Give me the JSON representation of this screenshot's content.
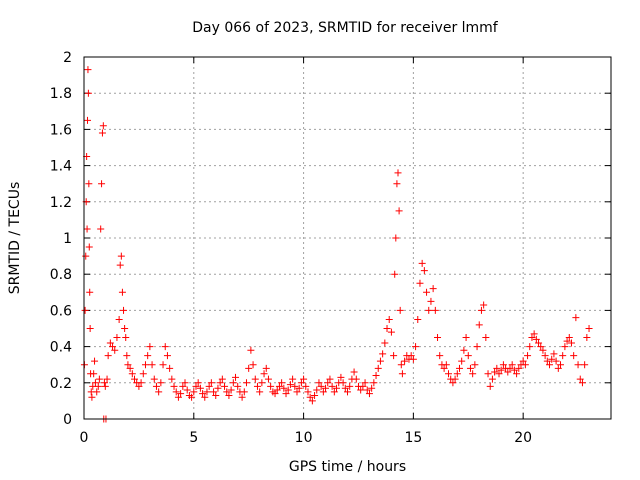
{
  "chart_data": {
    "type": "scatter",
    "title": "Day 066 of 2023, SRMTID for receiver lmmf",
    "xlabel": "GPS time / hours",
    "ylabel": "SRMTID / TECUs",
    "xlim": [
      0,
      24
    ],
    "ylim": [
      0,
      2
    ],
    "xticks": [
      0,
      5,
      10,
      15,
      20
    ],
    "xtick_labels": [
      "0",
      "5",
      "10",
      "15",
      "20"
    ],
    "yticks": [
      0,
      0.2,
      0.4,
      0.6,
      0.8,
      1,
      1.2,
      1.4,
      1.6,
      1.8,
      2
    ],
    "ytick_labels": [
      "0",
      "0.2",
      "0.4",
      "0.6",
      "0.8",
      "1",
      "1.2",
      "1.4",
      "1.6",
      "1.8",
      "2"
    ],
    "grid": true,
    "marker": "+",
    "color": "#ff0000",
    "series": [
      {
        "name": "SRMTID",
        "points": [
          [
            0.02,
            0.3
          ],
          [
            0.05,
            0.6
          ],
          [
            0.08,
            0.9
          ],
          [
            0.1,
            1.2
          ],
          [
            0.12,
            1.45
          ],
          [
            0.14,
            1.05
          ],
          [
            0.16,
            1.65
          ],
          [
            0.18,
            1.93
          ],
          [
            0.2,
            1.8
          ],
          [
            0.22,
            1.3
          ],
          [
            0.24,
            0.95
          ],
          [
            0.26,
            0.7
          ],
          [
            0.28,
            0.5
          ],
          [
            0.3,
            0.25
          ],
          [
            0.33,
            0.15
          ],
          [
            0.36,
            0.12
          ],
          [
            0.4,
            0.18
          ],
          [
            0.44,
            0.25
          ],
          [
            0.48,
            0.32
          ],
          [
            0.52,
            0.2
          ],
          [
            0.58,
            0.15
          ],
          [
            0.65,
            0.18
          ],
          [
            0.7,
            0.22
          ],
          [
            0.76,
            1.05
          ],
          [
            0.8,
            1.3
          ],
          [
            0.84,
            1.58
          ],
          [
            0.88,
            1.62
          ],
          [
            0.9,
            0.0
          ],
          [
            0.93,
            0.2
          ],
          [
            0.97,
            0.18
          ],
          [
            1.0,
            0.0
          ],
          [
            1.05,
            0.22
          ],
          [
            1.1,
            0.35
          ],
          [
            1.2,
            0.42
          ],
          [
            1.3,
            0.4
          ],
          [
            1.4,
            0.38
          ],
          [
            1.5,
            0.45
          ],
          [
            1.6,
            0.55
          ],
          [
            1.65,
            0.85
          ],
          [
            1.7,
            0.9
          ],
          [
            1.75,
            0.7
          ],
          [
            1.8,
            0.6
          ],
          [
            1.85,
            0.5
          ],
          [
            1.9,
            0.45
          ],
          [
            1.95,
            0.35
          ],
          [
            2.0,
            0.3
          ],
          [
            2.1,
            0.28
          ],
          [
            2.2,
            0.25
          ],
          [
            2.3,
            0.22
          ],
          [
            2.4,
            0.2
          ],
          [
            2.5,
            0.18
          ],
          [
            2.6,
            0.2
          ],
          [
            2.7,
            0.25
          ],
          [
            2.8,
            0.3
          ],
          [
            2.9,
            0.35
          ],
          [
            3.0,
            0.4
          ],
          [
            3.1,
            0.3
          ],
          [
            3.2,
            0.22
          ],
          [
            3.3,
            0.18
          ],
          [
            3.4,
            0.15
          ],
          [
            3.5,
            0.2
          ],
          [
            3.6,
            0.3
          ],
          [
            3.7,
            0.4
          ],
          [
            3.8,
            0.35
          ],
          [
            3.9,
            0.28
          ],
          [
            4.0,
            0.22
          ],
          [
            4.1,
            0.18
          ],
          [
            4.2,
            0.15
          ],
          [
            4.3,
            0.12
          ],
          [
            4.4,
            0.14
          ],
          [
            4.5,
            0.18
          ],
          [
            4.6,
            0.2
          ],
          [
            4.7,
            0.16
          ],
          [
            4.8,
            0.13
          ],
          [
            4.9,
            0.12
          ],
          [
            5.0,
            0.15
          ],
          [
            5.1,
            0.18
          ],
          [
            5.2,
            0.2
          ],
          [
            5.3,
            0.17
          ],
          [
            5.4,
            0.14
          ],
          [
            5.5,
            0.12
          ],
          [
            5.6,
            0.15
          ],
          [
            5.7,
            0.18
          ],
          [
            5.8,
            0.2
          ],
          [
            5.9,
            0.15
          ],
          [
            6.0,
            0.13
          ],
          [
            6.1,
            0.17
          ],
          [
            6.2,
            0.2
          ],
          [
            6.3,
            0.22
          ],
          [
            6.4,
            0.18
          ],
          [
            6.5,
            0.15
          ],
          [
            6.6,
            0.13
          ],
          [
            6.7,
            0.16
          ],
          [
            6.8,
            0.2
          ],
          [
            6.9,
            0.23
          ],
          [
            7.0,
            0.18
          ],
          [
            7.1,
            0.15
          ],
          [
            7.2,
            0.12
          ],
          [
            7.3,
            0.15
          ],
          [
            7.4,
            0.2
          ],
          [
            7.5,
            0.28
          ],
          [
            7.6,
            0.38
          ],
          [
            7.7,
            0.3
          ],
          [
            7.8,
            0.22
          ],
          [
            7.9,
            0.18
          ],
          [
            8.0,
            0.15
          ],
          [
            8.1,
            0.2
          ],
          [
            8.2,
            0.25
          ],
          [
            8.3,
            0.28
          ],
          [
            8.4,
            0.22
          ],
          [
            8.5,
            0.18
          ],
          [
            8.6,
            0.15
          ],
          [
            8.7,
            0.14
          ],
          [
            8.8,
            0.16
          ],
          [
            8.9,
            0.18
          ],
          [
            9.0,
            0.2
          ],
          [
            9.1,
            0.17
          ],
          [
            9.2,
            0.14
          ],
          [
            9.3,
            0.16
          ],
          [
            9.4,
            0.19
          ],
          [
            9.5,
            0.22
          ],
          [
            9.6,
            0.18
          ],
          [
            9.7,
            0.15
          ],
          [
            9.8,
            0.17
          ],
          [
            9.9,
            0.2
          ],
          [
            10.0,
            0.22
          ],
          [
            10.1,
            0.18
          ],
          [
            10.2,
            0.15
          ],
          [
            10.3,
            0.12
          ],
          [
            10.4,
            0.1
          ],
          [
            10.5,
            0.13
          ],
          [
            10.6,
            0.16
          ],
          [
            10.7,
            0.2
          ],
          [
            10.8,
            0.18
          ],
          [
            10.9,
            0.15
          ],
          [
            11.0,
            0.17
          ],
          [
            11.1,
            0.2
          ],
          [
            11.2,
            0.22
          ],
          [
            11.3,
            0.18
          ],
          [
            11.4,
            0.15
          ],
          [
            11.5,
            0.17
          ],
          [
            11.6,
            0.2
          ],
          [
            11.7,
            0.23
          ],
          [
            11.8,
            0.2
          ],
          [
            11.9,
            0.17
          ],
          [
            12.0,
            0.15
          ],
          [
            12.1,
            0.18
          ],
          [
            12.2,
            0.22
          ],
          [
            12.3,
            0.26
          ],
          [
            12.4,
            0.22
          ],
          [
            12.5,
            0.18
          ],
          [
            12.6,
            0.16
          ],
          [
            12.7,
            0.18
          ],
          [
            12.8,
            0.2
          ],
          [
            12.9,
            0.16
          ],
          [
            13.0,
            0.14
          ],
          [
            13.1,
            0.17
          ],
          [
            13.2,
            0.2
          ],
          [
            13.3,
            0.24
          ],
          [
            13.4,
            0.28
          ],
          [
            13.5,
            0.32
          ],
          [
            13.6,
            0.36
          ],
          [
            13.7,
            0.42
          ],
          [
            13.8,
            0.5
          ],
          [
            13.9,
            0.55
          ],
          [
            14.0,
            0.48
          ],
          [
            14.1,
            0.35
          ],
          [
            14.15,
            0.8
          ],
          [
            14.2,
            1.0
          ],
          [
            14.25,
            1.3
          ],
          [
            14.3,
            1.36
          ],
          [
            14.35,
            1.15
          ],
          [
            14.4,
            0.6
          ],
          [
            14.45,
            0.3
          ],
          [
            14.5,
            0.25
          ],
          [
            14.6,
            0.32
          ],
          [
            14.7,
            0.35
          ],
          [
            14.8,
            0.33
          ],
          [
            14.9,
            0.35
          ],
          [
            15.0,
            0.33
          ],
          [
            15.1,
            0.4
          ],
          [
            15.2,
            0.55
          ],
          [
            15.3,
            0.75
          ],
          [
            15.4,
            0.86
          ],
          [
            15.5,
            0.82
          ],
          [
            15.6,
            0.7
          ],
          [
            15.7,
            0.6
          ],
          [
            15.8,
            0.65
          ],
          [
            15.9,
            0.72
          ],
          [
            16.0,
            0.6
          ],
          [
            16.1,
            0.45
          ],
          [
            16.2,
            0.35
          ],
          [
            16.3,
            0.3
          ],
          [
            16.4,
            0.28
          ],
          [
            16.5,
            0.3
          ],
          [
            16.6,
            0.25
          ],
          [
            16.7,
            0.22
          ],
          [
            16.8,
            0.2
          ],
          [
            16.9,
            0.22
          ],
          [
            17.0,
            0.25
          ],
          [
            17.1,
            0.28
          ],
          [
            17.2,
            0.32
          ],
          [
            17.3,
            0.38
          ],
          [
            17.4,
            0.45
          ],
          [
            17.5,
            0.35
          ],
          [
            17.6,
            0.28
          ],
          [
            17.7,
            0.25
          ],
          [
            17.8,
            0.3
          ],
          [
            17.9,
            0.4
          ],
          [
            18.0,
            0.52
          ],
          [
            18.1,
            0.6
          ],
          [
            18.2,
            0.63
          ],
          [
            18.3,
            0.45
          ],
          [
            18.4,
            0.25
          ],
          [
            18.5,
            0.18
          ],
          [
            18.6,
            0.22
          ],
          [
            18.7,
            0.26
          ],
          [
            18.8,
            0.28
          ],
          [
            18.9,
            0.25
          ],
          [
            19.0,
            0.27
          ],
          [
            19.1,
            0.3
          ],
          [
            19.2,
            0.28
          ],
          [
            19.3,
            0.26
          ],
          [
            19.4,
            0.28
          ],
          [
            19.5,
            0.3
          ],
          [
            19.6,
            0.27
          ],
          [
            19.7,
            0.25
          ],
          [
            19.8,
            0.28
          ],
          [
            19.9,
            0.3
          ],
          [
            20.0,
            0.32
          ],
          [
            20.1,
            0.3
          ],
          [
            20.2,
            0.35
          ],
          [
            20.3,
            0.4
          ],
          [
            20.4,
            0.45
          ],
          [
            20.5,
            0.47
          ],
          [
            20.6,
            0.44
          ],
          [
            20.7,
            0.42
          ],
          [
            20.8,
            0.4
          ],
          [
            20.9,
            0.38
          ],
          [
            21.0,
            0.35
          ],
          [
            21.1,
            0.32
          ],
          [
            21.2,
            0.3
          ],
          [
            21.3,
            0.33
          ],
          [
            21.4,
            0.36
          ],
          [
            21.5,
            0.32
          ],
          [
            21.6,
            0.28
          ],
          [
            21.7,
            0.3
          ],
          [
            21.8,
            0.35
          ],
          [
            21.9,
            0.4
          ],
          [
            22.0,
            0.43
          ],
          [
            22.1,
            0.45
          ],
          [
            22.2,
            0.42
          ],
          [
            22.3,
            0.35
          ],
          [
            22.4,
            0.56
          ],
          [
            22.5,
            0.3
          ],
          [
            22.6,
            0.22
          ],
          [
            22.7,
            0.2
          ],
          [
            22.8,
            0.3
          ],
          [
            22.9,
            0.45
          ],
          [
            23.0,
            0.5
          ]
        ]
      }
    ]
  }
}
